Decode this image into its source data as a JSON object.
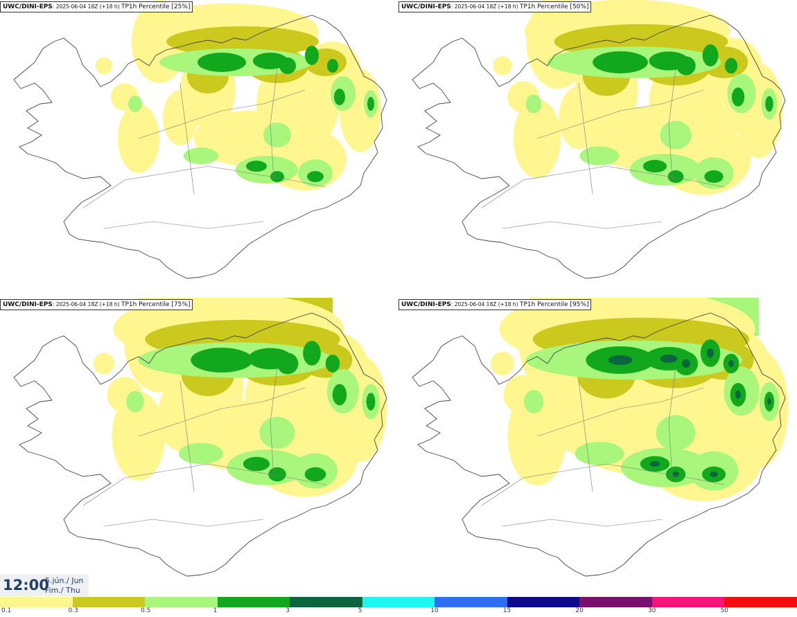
{
  "panels": [
    {
      "model": "UWC/DINI-EPS",
      "run": ": 2025-06-04 18Z (+18 h) ",
      "param": "TP1h Percentile [25%]",
      "level": 0
    },
    {
      "model": "UWC/DINI-EPS",
      "run": ": 2025-06-04 18Z (+18 h) ",
      "param": "TP1h Percentile [50%]",
      "level": 1
    },
    {
      "model": "UWC/DINI-EPS",
      "run": ": 2025-06-04 18Z (+18 h) ",
      "param": "TP1h Percentile [75%]",
      "level": 2
    },
    {
      "model": "UWC/DINI-EPS",
      "run": ": 2025-06-04 18Z (+18 h) ",
      "param": "TP1h Percentile [95%]",
      "level": 3
    }
  ],
  "valid_time": {
    "time": "12:00",
    "date_is": "5.jún./ Jun",
    "day": "Fim./ Thu"
  },
  "legend": {
    "ticks": [
      "0.1",
      "0.3",
      "0.5",
      "1",
      "3",
      "5",
      "10",
      "15",
      "20",
      "30",
      "50"
    ],
    "colors": [
      "#fff68f",
      "#cbc91e",
      "#a8f77c",
      "#12a81e",
      "#0b6640",
      "#21f5f2",
      "#2d6ef5",
      "#0c0c8a",
      "#7a0f6e",
      "#f5157a",
      "#f50c0c"
    ]
  }
}
